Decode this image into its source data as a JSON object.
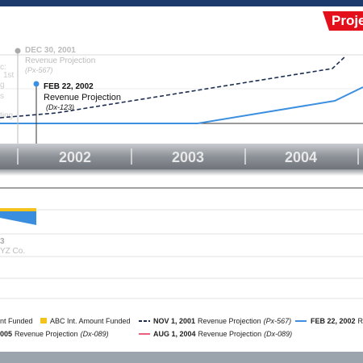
{
  "header": {
    "tab": "Proje"
  },
  "annotations": [
    {
      "date": "DEC 30, 2001",
      "label": "Revenue Projection",
      "code": "(Px-567)"
    },
    {
      "date": "FEB 22, 2002",
      "label": "Revenue Projection",
      "code": "(Dx-123)"
    }
  ],
  "left_fragments": [
    "c:",
    "1st",
    "g",
    "s",
    "ting"
  ],
  "timeline": [
    "2002",
    "2003",
    "2004"
  ],
  "lower": {
    "number": "3",
    "company": "YZ Co."
  },
  "legend": {
    "row1": [
      {
        "label": "nt Funded"
      },
      {
        "label": "ABC Int. Amount Funded"
      },
      {
        "date": "NOV 1, 2001",
        "label": "Revenue Projection",
        "code": "(Px-567)"
      },
      {
        "date": "FEB 22, 2002",
        "label": "R"
      }
    ],
    "row2": [
      {
        "date": "005",
        "label": "Revenue Projection",
        "code": "(Dx-089)"
      },
      {
        "date": "AUG 1, 2004",
        "label": "Revenue Projection",
        "code": "(Dx-089)"
      }
    ]
  }
}
